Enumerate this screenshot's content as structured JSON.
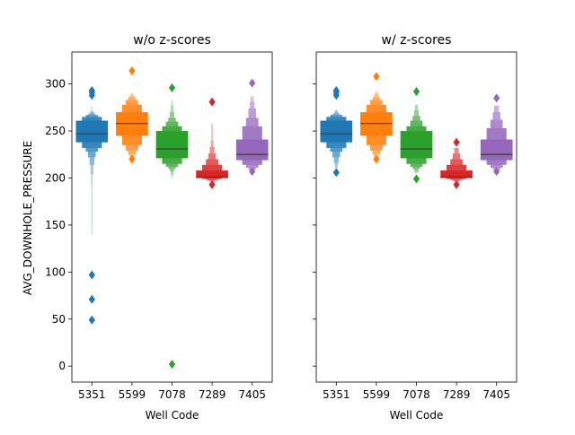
{
  "chart_data": [
    {
      "type": "boxen",
      "title": "w/o z-scores",
      "xlabel": "Well Code",
      "ylabel": "AVG_DOWNHOLE_PRESSURE",
      "categories": [
        "5351",
        "5599",
        "7078",
        "7289",
        "7405"
      ],
      "yticks": [
        0,
        50,
        100,
        150,
        200,
        250,
        300
      ],
      "ylim": [
        -17,
        334
      ],
      "grid": false,
      "series": [
        {
          "category": "5351",
          "color": "#1f77b4",
          "median": 247,
          "levels": [
            [
              238,
              261
            ],
            [
              232,
              265
            ],
            [
              228,
              267
            ],
            [
              222,
              268
            ],
            [
              214,
              270
            ],
            [
              204,
              271
            ],
            [
              190,
              273
            ],
            [
              140,
              276
            ]
          ],
          "outliers": [
            97,
            71,
            49,
            288,
            291,
            293
          ]
        },
        {
          "category": "5599",
          "color": "#ff7f0e",
          "median": 258,
          "levels": [
            [
              245,
              270
            ],
            [
              235,
              278
            ],
            [
              229,
              283
            ],
            [
              225,
              286
            ],
            [
              222,
              288
            ],
            [
              220,
              290
            ]
          ],
          "outliers": [
            314,
            220
          ]
        },
        {
          "category": "7078",
          "color": "#2ca02c",
          "median": 231,
          "levels": [
            [
              221,
              250
            ],
            [
              215,
              255
            ],
            [
              212,
              260
            ],
            [
              210,
              264
            ],
            [
              207,
              270
            ],
            [
              203,
              277
            ],
            [
              200,
              283
            ]
          ],
          "outliers": [
            296,
            2
          ]
        },
        {
          "category": "7289",
          "color": "#d62728",
          "median": 201,
          "levels": [
            [
              200,
              208
            ],
            [
              199,
              214
            ],
            [
              198,
              220
            ],
            [
              197,
              226
            ],
            [
              196,
              233
            ],
            [
              196,
              240
            ],
            [
              195,
              258
            ]
          ],
          "outliers": [
            281,
            193
          ]
        },
        {
          "category": "7405",
          "color": "#9467bd",
          "median": 225,
          "levels": [
            [
              219,
              241
            ],
            [
              214,
              255
            ],
            [
              211,
              264
            ],
            [
              209,
              274
            ],
            [
              208,
              281
            ],
            [
              207,
              287
            ]
          ],
          "outliers": [
            301,
            207
          ]
        }
      ]
    },
    {
      "type": "boxen",
      "title": "w/ z-scores",
      "xlabel": "Well Code",
      "ylabel": "",
      "categories": [
        "5351",
        "5599",
        "7078",
        "7289",
        "7405"
      ],
      "yticks": [
        0,
        50,
        100,
        150,
        200,
        250,
        300
      ],
      "ylim": [
        -17,
        334
      ],
      "grid": false,
      "series": [
        {
          "category": "5351",
          "color": "#1f77b4",
          "median": 247,
          "levels": [
            [
              238,
              261
            ],
            [
              232,
              265
            ],
            [
              228,
              267
            ],
            [
              222,
              268
            ],
            [
              216,
              270
            ],
            [
              211,
              272
            ]
          ],
          "outliers": [
            206,
            288,
            291,
            293
          ]
        },
        {
          "category": "5599",
          "color": "#ff7f0e",
          "median": 258,
          "levels": [
            [
              245,
              270
            ],
            [
              235,
              278
            ],
            [
              229,
              283
            ],
            [
              225,
              286
            ],
            [
              222,
              289
            ],
            [
              220,
              292
            ]
          ],
          "outliers": [
            308,
            220
          ]
        },
        {
          "category": "7078",
          "color": "#2ca02c",
          "median": 231,
          "levels": [
            [
              221,
              250
            ],
            [
              215,
              255
            ],
            [
              212,
              261
            ],
            [
              210,
              266
            ],
            [
              207,
              272
            ],
            [
              205,
              278
            ]
          ],
          "outliers": [
            292,
            199
          ]
        },
        {
          "category": "7289",
          "color": "#d62728",
          "median": 201,
          "levels": [
            [
              200,
              208
            ],
            [
              199,
              214
            ],
            [
              198,
              220
            ],
            [
              197,
              226
            ],
            [
              196,
              232
            ]
          ],
          "outliers": [
            238,
            193
          ]
        },
        {
          "category": "7405",
          "color": "#9467bd",
          "median": 225,
          "levels": [
            [
              219,
              241
            ],
            [
              214,
              253
            ],
            [
              211,
              262
            ],
            [
              209,
              270
            ],
            [
              208,
              277
            ]
          ],
          "outliers": [
            285,
            207
          ]
        }
      ]
    }
  ]
}
